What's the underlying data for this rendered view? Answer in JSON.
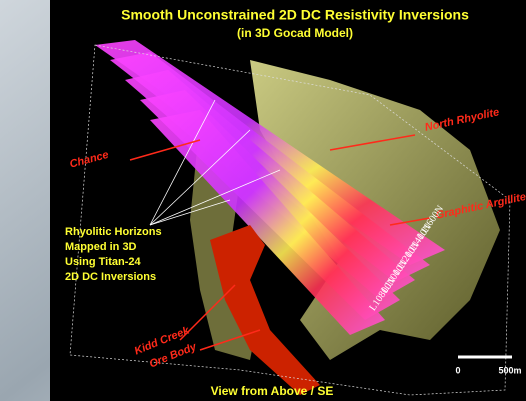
{
  "title": "Smooth Unconstrained 2D DC Resistivity Inversions",
  "subtitle": "(in 3D Gocad Model)",
  "annotations": {
    "north_rhyolite": "North Rhyolite",
    "chance": "Chance",
    "graphitic_argillite": "Graphitic Argillite",
    "rhyolitic_horizons": [
      "Rhyolitic Horizons",
      "Mapped in 3D",
      "Using Titan-24",
      "2D DC Inversions"
    ],
    "kidd_creek": [
      "Kidd Creek",
      "Ore Body"
    ]
  },
  "line_labels": [
    "L11600N",
    "L11400N",
    "L11200N",
    "L11000N",
    "L10800N"
  ],
  "scale_bar": {
    "start": "0",
    "end": "500m"
  },
  "caption": "View from Above / SE"
}
